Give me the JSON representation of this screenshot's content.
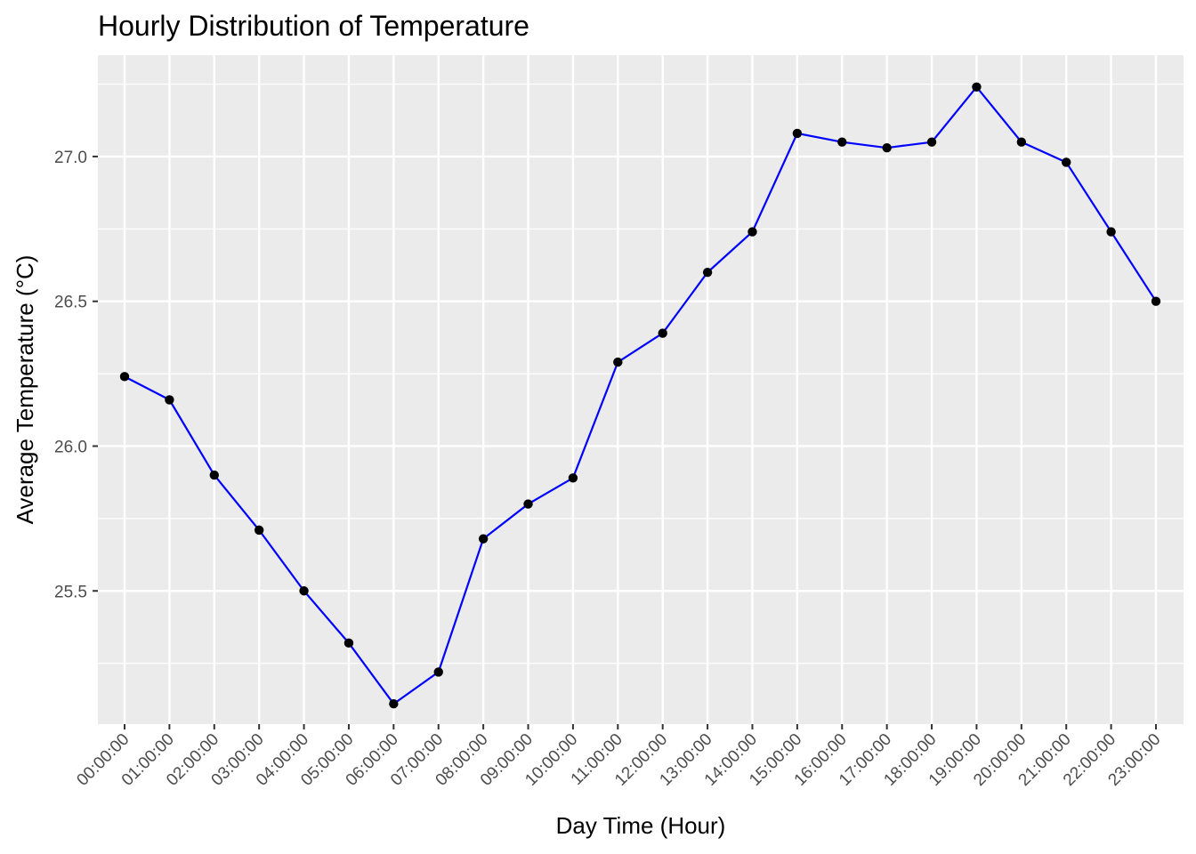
{
  "chart_data": {
    "type": "line",
    "title": "Hourly Distribution of Temperature",
    "xlabel": "Day Time (Hour)",
    "ylabel": "Average Temperature (°C)",
    "categories": [
      "00:00:00",
      "01:00:00",
      "02:00:00",
      "03:00:00",
      "04:00:00",
      "05:00:00",
      "06:00:00",
      "07:00:00",
      "08:00:00",
      "09:00:00",
      "10:00:00",
      "11:00:00",
      "12:00:00",
      "13:00:00",
      "14:00:00",
      "15:00:00",
      "16:00:00",
      "17:00:00",
      "18:00:00",
      "19:00:00",
      "20:00:00",
      "21:00:00",
      "22:00:00",
      "23:00:00"
    ],
    "values": [
      26.24,
      26.16,
      25.9,
      25.71,
      25.5,
      25.32,
      25.11,
      25.22,
      25.68,
      25.8,
      25.89,
      26.29,
      26.39,
      26.6,
      26.74,
      27.08,
      27.05,
      27.03,
      27.05,
      27.24,
      27.05,
      26.98,
      26.74,
      26.5
    ],
    "ylim": [
      25.04,
      27.35
    ],
    "yticks": [
      25.5,
      26.0,
      26.5,
      27.0
    ],
    "ytick_labels": [
      "25.5",
      "26.0",
      "26.5",
      "27.0"
    ],
    "grid": true,
    "background": "#ebebeb",
    "grid_color": "#ffffff",
    "line_color": "#0000ff",
    "point_color": "#000000"
  }
}
